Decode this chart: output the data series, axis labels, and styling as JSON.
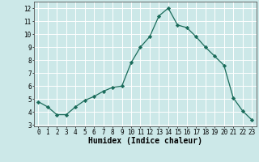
{
  "title": "",
  "xlabel": "Humidex (Indice chaleur)",
  "ylabel": "",
  "x_values": [
    0,
    1,
    2,
    3,
    4,
    5,
    6,
    7,
    8,
    9,
    10,
    11,
    12,
    13,
    14,
    15,
    16,
    17,
    18,
    19,
    20,
    21,
    22,
    23
  ],
  "y_values": [
    4.8,
    4.4,
    3.8,
    3.8,
    4.4,
    4.9,
    5.2,
    5.6,
    5.9,
    6.0,
    7.8,
    9.0,
    9.8,
    11.4,
    12.0,
    10.7,
    10.5,
    9.8,
    9.0,
    8.3,
    7.6,
    5.1,
    4.1,
    3.4
  ],
  "line_color": "#1a6b5a",
  "marker": "D",
  "marker_size": 2.2,
  "bg_color": "#cce8e8",
  "grid_color": "#ffffff",
  "ylim": [
    2.9,
    12.5
  ],
  "xlim": [
    -0.5,
    23.5
  ],
  "yticks": [
    3,
    4,
    5,
    6,
    7,
    8,
    9,
    10,
    11,
    12
  ],
  "xticks": [
    0,
    1,
    2,
    3,
    4,
    5,
    6,
    7,
    8,
    9,
    10,
    11,
    12,
    13,
    14,
    15,
    16,
    17,
    18,
    19,
    20,
    21,
    22,
    23
  ],
  "tick_fontsize": 5.5,
  "label_fontsize": 7.0,
  "linewidth": 0.9
}
